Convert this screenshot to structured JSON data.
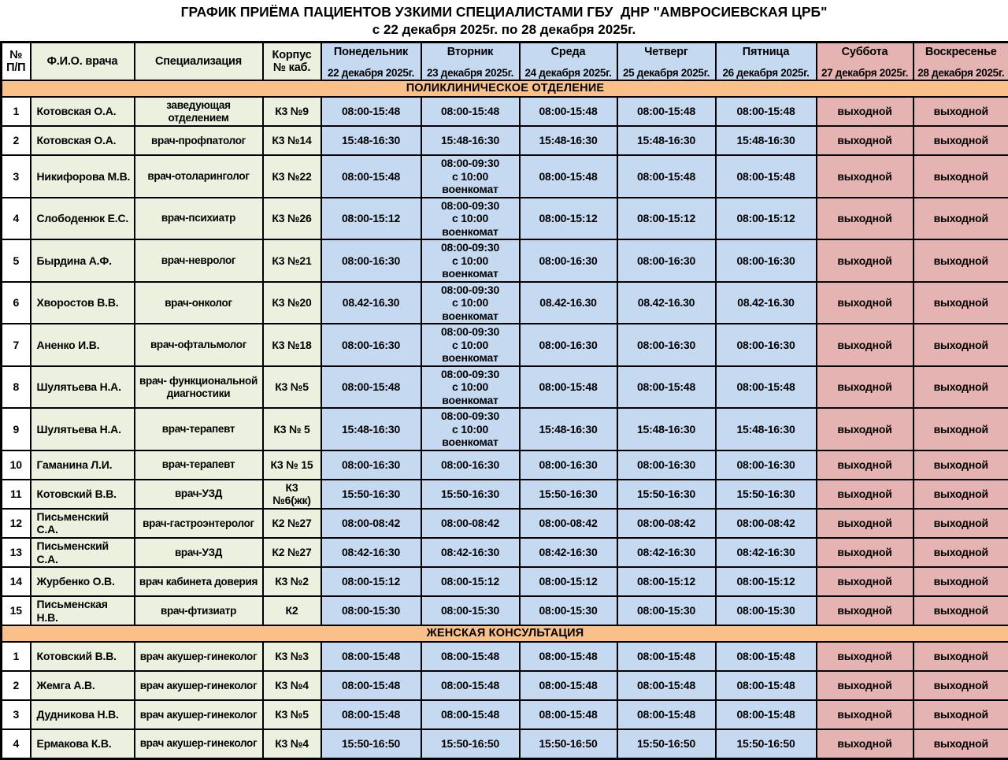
{
  "title": {
    "line1": "ГРАФИК ПРИЁМА ПАЦИЕНТОВ УЗКИМИ СПЕЦИАЛИСТАМИ ГБУ  ДНР \"АМВРОСИЕВСКАЯ ЦРБ\"",
    "line2": "с 22 декабря 2025г. по 28 декабря 2025г."
  },
  "colors": {
    "green": "#ebf1de",
    "blue": "#c5d9f0",
    "pink": "#e5b3b1",
    "orange": "#f9c189",
    "white": "#ffffff",
    "border": "#000000"
  },
  "columns": [
    {
      "title": "№\nП/П"
    },
    {
      "title": "Ф.И.О. врача"
    },
    {
      "title": "Специализация"
    },
    {
      "title": "Корпус\n№ каб."
    },
    {
      "title": "Понедельник",
      "date": "22 декабря 2025г."
    },
    {
      "title": "Вторник",
      "date": "23 декабря 2025г."
    },
    {
      "title": "Среда",
      "date": "24 декабря 2025г."
    },
    {
      "title": "Четверг",
      "date": "25 декабря 2025г."
    },
    {
      "title": "Пятница",
      "date": "26 декабря 2025г."
    },
    {
      "title": "Суббота",
      "date": "27 декабря 2025г."
    },
    {
      "title": "Воскресенье",
      "date": "28 декабря 2025г."
    }
  ],
  "sections": [
    {
      "label": "ПОЛИКЛИНИЧЕСКОЕ ОТДЕЛЕНИЕ",
      "rows": [
        {
          "num": "1",
          "name": "Котовская О.А.",
          "spec": "заведующая отделением",
          "cab": "К3 №9",
          "days": [
            "08:00-15:48",
            "08:00-15:48",
            "08:00-15:48",
            "08:00-15:48",
            "08:00-15:48",
            "выходной",
            "выходной"
          ]
        },
        {
          "num": "2",
          "name": "Котовская О.А.",
          "spec": "врач-профпатолог",
          "cab": "К3 №14",
          "days": [
            "15:48-16:30",
            "15:48-16:30",
            "15:48-16:30",
            "15:48-16:30",
            "15:48-16:30",
            "выходной",
            "выходной"
          ]
        },
        {
          "num": "3",
          "name": "Никифорова М.В.",
          "spec": "врач-отоларинголог",
          "cab": "К3 №22",
          "days": [
            "08:00-15:48",
            "08:00-09:30\nс 10:00 военкомат",
            "08:00-15:48",
            "08:00-15:48",
            "08:00-15:48",
            "выходной",
            "выходной"
          ]
        },
        {
          "num": "4",
          "name": "Слободенюк Е.С.",
          "spec": "врач-психиатр",
          "cab": "К3 №26",
          "days": [
            "08:00-15:12",
            "08:00-09:30\nс 10:00 военкомат",
            "08:00-15:12",
            "08:00-15:12",
            "08:00-15:12",
            "выходной",
            "выходной"
          ]
        },
        {
          "num": "5",
          "name": "Бырдина А.Ф.",
          "spec": "врач-невролог",
          "cab": "К3 №21",
          "days": [
            "08:00-16:30",
            "08:00-09:30\nс 10:00 военкомат",
            "08:00-16:30",
            "08:00-16:30",
            "08:00-16:30",
            "выходной",
            "выходной"
          ]
        },
        {
          "num": "6",
          "name": "Хворостов В.В.",
          "spec": "врач-онколог",
          "cab": "К3 №20",
          "days": [
            "08.42-16.30",
            "08:00-09:30\nс 10:00 военкомат",
            "08.42-16.30",
            "08.42-16.30",
            "08.42-16.30",
            "выходной",
            "выходной"
          ]
        },
        {
          "num": "7",
          "name": "Аненко И.В.",
          "spec": "врач-офтальмолог",
          "cab": "К3 №18",
          "days": [
            "08:00-16:30",
            "08:00-09:30\nс 10:00 военкомат",
            "08:00-16:30",
            "08:00-16:30",
            "08:00-16:30",
            "выходной",
            "выходной"
          ]
        },
        {
          "num": "8",
          "name": "Шулятьева Н.А.",
          "spec": "врач- функциональной диагностики",
          "cab": "К3 №5",
          "days": [
            "08:00-15:48",
            "08:00-09:30\nс 10:00 военкомат",
            "08:00-15:48",
            "08:00-15:48",
            "08:00-15:48",
            "выходной",
            "выходной"
          ]
        },
        {
          "num": "9",
          "name": "Шулятьева Н.А.",
          "spec": "врач-терапевт",
          "cab": "К3 № 5",
          "days": [
            "15:48-16:30",
            "08:00-09:30\nс 10:00 военкомат",
            "15:48-16:30",
            "15:48-16:30",
            "15:48-16:30",
            "выходной",
            "выходной"
          ]
        },
        {
          "num": "10",
          "name": "Гаманина Л.И.",
          "spec": "врач-терапевт",
          "cab": "К3 № 15",
          "days": [
            "08:00-16:30",
            "08:00-16:30",
            "08:00-16:30",
            "08:00-16:30",
            "08:00-16:30",
            "выходной",
            "выходной"
          ]
        },
        {
          "num": "11",
          "name": "Котовский В.В.",
          "spec": "врач-УЗД",
          "cab": "К3 №6(жк)",
          "days": [
            "15:50-16:30",
            "15:50-16:30",
            "15:50-16:30",
            "15:50-16:30",
            "15:50-16:30",
            "выходной",
            "выходной"
          ]
        },
        {
          "num": "12",
          "name": "Письменский С.А.",
          "spec": "врач-гастроэнтеролог",
          "cab": "К2 №27",
          "days": [
            "08:00-08:42",
            "08:00-08:42",
            "08:00-08:42",
            "08:00-08:42",
            "08:00-08:42",
            "выходной",
            "выходной"
          ]
        },
        {
          "num": "13",
          "name": "Письменский С.А.",
          "spec": "врач-УЗД",
          "cab": "К2 №27",
          "days": [
            "08:42-16:30",
            "08:42-16:30",
            "08:42-16:30",
            "08:42-16:30",
            "08:42-16:30",
            "выходной",
            "выходной"
          ]
        },
        {
          "num": "14",
          "name": "Журбенко О.В.",
          "spec": "врач кабинета доверия",
          "cab": "К3 №2",
          "days": [
            "08:00-15:12",
            "08:00-15:12",
            "08:00-15:12",
            "08:00-15:12",
            "08:00-15:12",
            "выходной",
            "выходной"
          ]
        },
        {
          "num": "15",
          "name": "Письменская Н.В.",
          "spec": "врач-фтизиатр",
          "cab": "К2",
          "days": [
            "08:00-15:30",
            "08:00-15:30",
            "08:00-15:30",
            "08:00-15:30",
            "08:00-15:30",
            "выходной",
            "выходной"
          ]
        }
      ]
    },
    {
      "label": "ЖЕНСКАЯ КОНСУЛЬТАЦИЯ",
      "rows": [
        {
          "num": "1",
          "name": "Котовский В.В.",
          "spec": "врач акушер-гинеколог",
          "cab": "К3 №3",
          "days": [
            "08:00-15:48",
            "08:00-15:48",
            "08:00-15:48",
            "08:00-15:48",
            "08:00-15:48",
            "выходной",
            "выходной"
          ]
        },
        {
          "num": "2",
          "name": "Жемга А.В.",
          "spec": "врач акушер-гинеколог",
          "cab": "К3 №4",
          "days": [
            "08:00-15:48",
            "08:00-15:48",
            "08:00-15:48",
            "08:00-15:48",
            "08:00-15:48",
            "выходной",
            "выходной"
          ]
        },
        {
          "num": "3",
          "name": "Дудникова Н.В.",
          "spec": "врач акушер-гинеколог",
          "cab": "К3 №5",
          "days": [
            "08:00-15:48",
            "08:00-15:48",
            "08:00-15:48",
            "08:00-15:48",
            "08:00-15:48",
            "выходной",
            "выходной"
          ]
        },
        {
          "num": "4",
          "name": "Ермакова К.В.",
          "spec": "врач акушер-гинеколог",
          "cab": "К3 №4",
          "days": [
            "15:50-16:50",
            "15:50-16:50",
            "15:50-16:50",
            "15:50-16:50",
            "15:50-16:50",
            "выходной",
            "выходной"
          ]
        }
      ]
    }
  ]
}
